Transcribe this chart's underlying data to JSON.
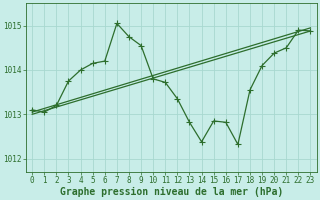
{
  "xlabel": "Graphe pression niveau de la mer (hPa)",
  "bg_color": "#c8ede8",
  "grid_color": "#a8d8d0",
  "line_color": "#2d6e2d",
  "ylim": [
    1011.7,
    1015.5
  ],
  "xlim": [
    -0.5,
    23.5
  ],
  "yticks": [
    1012,
    1013,
    1014,
    1015
  ],
  "xticks": [
    0,
    1,
    2,
    3,
    4,
    5,
    6,
    7,
    8,
    9,
    10,
    11,
    12,
    13,
    14,
    15,
    16,
    17,
    18,
    19,
    20,
    21,
    22,
    23
  ],
  "series1_x": [
    0,
    1,
    2,
    3,
    4,
    5,
    6,
    7,
    8,
    9,
    10,
    11,
    12,
    13,
    14,
    15,
    16,
    17,
    18,
    19,
    20,
    21,
    22,
    23
  ],
  "series1_y": [
    1013.1,
    1013.05,
    1013.2,
    1013.75,
    1014.0,
    1014.15,
    1014.2,
    1015.05,
    1014.75,
    1014.55,
    1013.8,
    1013.72,
    1013.35,
    1012.82,
    1012.38,
    1012.85,
    1012.82,
    1012.32,
    1013.55,
    1014.1,
    1014.38,
    1014.5,
    1014.9,
    1014.88
  ],
  "series2_x": [
    0,
    23
  ],
  "series2_y": [
    1013.05,
    1014.95
  ],
  "series3_x": [
    0,
    23
  ],
  "series3_y": [
    1013.0,
    1014.88
  ],
  "marker": "+",
  "markersize": 4,
  "linewidth": 0.9,
  "xlabel_fontsize": 7,
  "tick_fontsize": 5.5
}
